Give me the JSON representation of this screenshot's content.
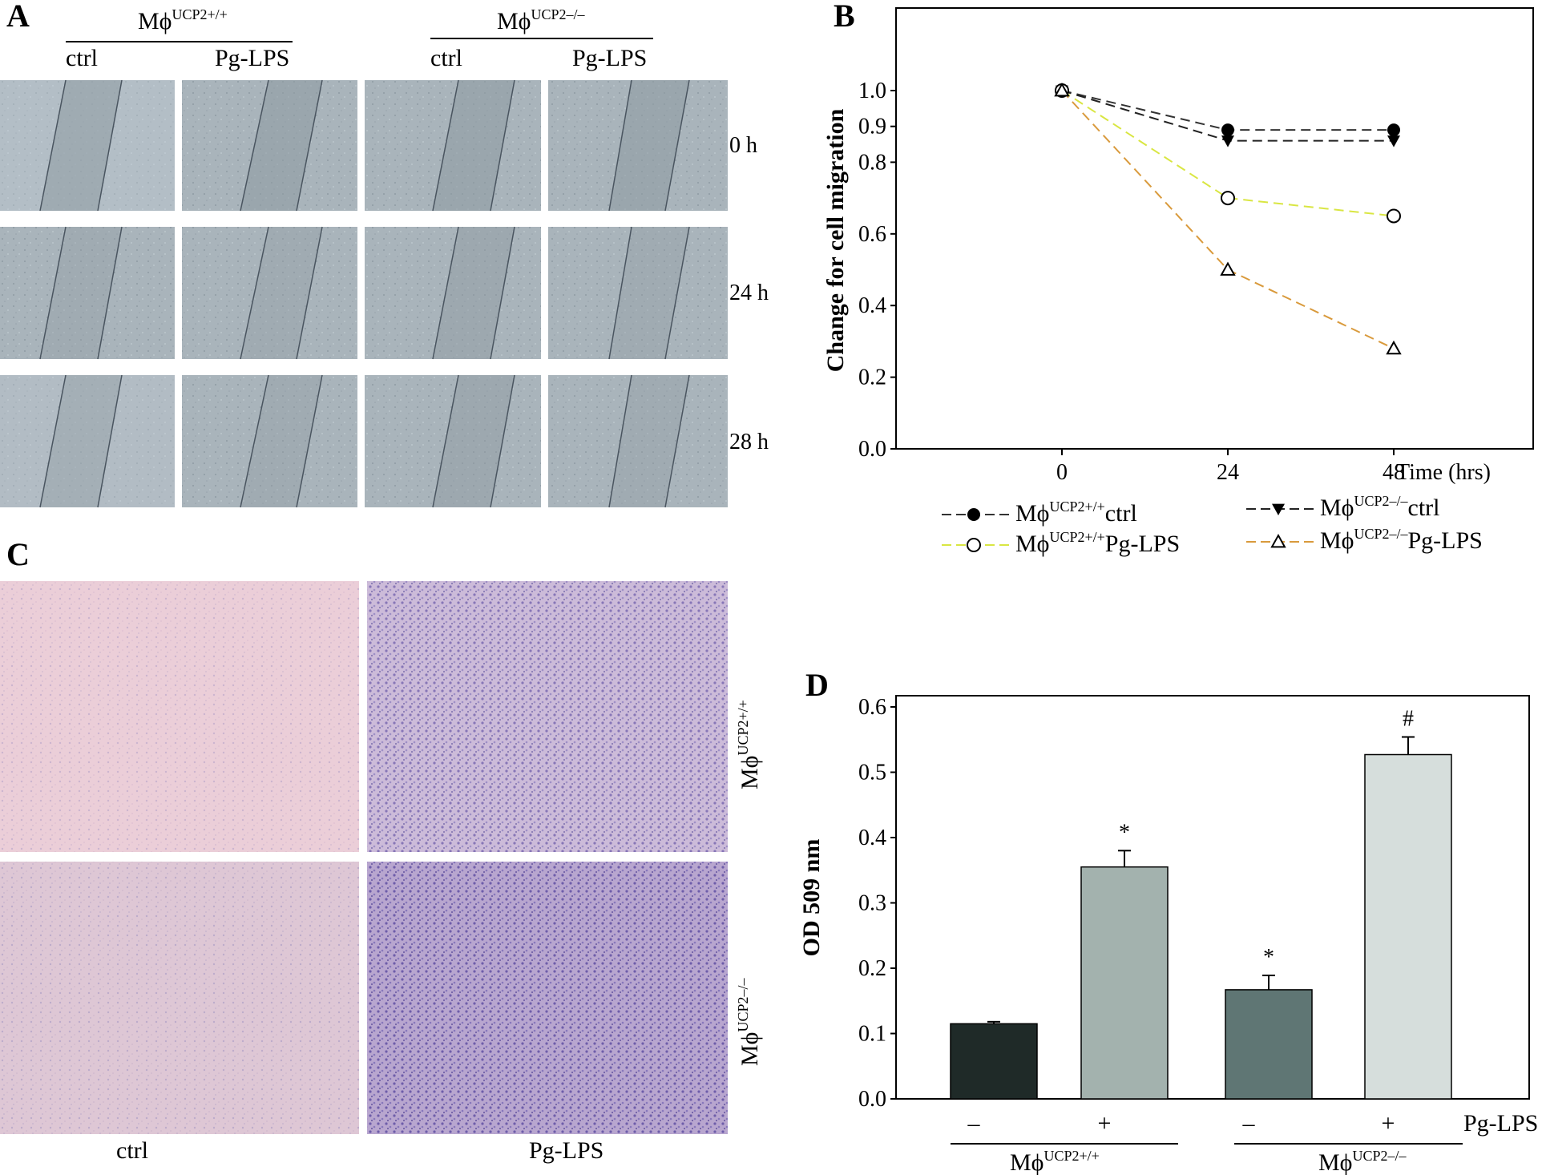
{
  "panel_labels": {
    "a": "A",
    "b": "B",
    "c": "C",
    "d": "D"
  },
  "panel_a": {
    "groups": [
      {
        "base": "Mϕ",
        "sup": "UCP2+/+"
      },
      {
        "base": "Mϕ",
        "sup": "UCP2–/–"
      }
    ],
    "conditions": [
      "ctrl",
      "Pg-LPS",
      "ctrl",
      "Pg-LPS"
    ],
    "timepoints": [
      "0 h",
      "24 h",
      "28 h"
    ]
  },
  "panel_c": {
    "row_labels": [
      {
        "base": "Mϕ",
        "sup": "UCP2+/+"
      },
      {
        "base": "Mϕ",
        "sup": "UCP2–/–"
      }
    ],
    "col_labels": [
      "ctrl",
      "Pg-LPS"
    ]
  },
  "chart_data": [
    {
      "type": "line",
      "panel": "B",
      "ylabel": "Change for cell migration",
      "xlabel": "Time (hrs)",
      "x": [
        0,
        24,
        48
      ],
      "x_tick_labels": [
        "0",
        "24",
        "48"
      ],
      "y_tick_labels": [
        "0.0",
        "0.2",
        "0.4",
        "0.6",
        "0.8",
        "0.9",
        "1.0"
      ],
      "series": [
        {
          "name": "MϕUCP2+/+ctrl",
          "base": "Mϕ",
          "sup": "UCP2+/+",
          "suffix": "ctrl",
          "values": [
            1.0,
            0.89,
            0.89
          ],
          "marker": "filled-circle",
          "color": "#333333"
        },
        {
          "name": "MϕUCP2–/–ctrl",
          "base": "Mϕ",
          "sup": "UCP2–/–",
          "suffix": "ctrl",
          "values": [
            1.0,
            0.86,
            0.86
          ],
          "marker": "filled-triangle-down",
          "color": "#222222"
        },
        {
          "name": "MϕUCP2+/+Pg-LPS",
          "base": "Mϕ",
          "sup": "UCP2+/+",
          "suffix": "Pg-LPS",
          "values": [
            1.0,
            0.7,
            0.65
          ],
          "marker": "open-circle",
          "color": "#d9e642"
        },
        {
          "name": "MϕUCP2–/–Pg-LPS",
          "base": "Mϕ",
          "sup": "UCP2–/–",
          "suffix": "Pg-LPS",
          "values": [
            1.0,
            0.5,
            0.28
          ],
          "marker": "open-triangle-up",
          "color": "#d99a3c"
        }
      ]
    },
    {
      "type": "bar",
      "panel": "D",
      "ylabel": "OD 509 nm",
      "ylim": [
        0,
        0.6
      ],
      "y_tick_labels": [
        "0.0",
        "0.1",
        "0.2",
        "0.3",
        "0.4",
        "0.5",
        "0.6"
      ],
      "categories": [
        "–",
        "+",
        "–",
        "+"
      ],
      "treatment_label": "Pg-LPS",
      "group_labels": [
        {
          "base": "Mϕ",
          "sup": "UCP2+/+"
        },
        {
          "base": "Mϕ",
          "sup": "UCP2–/–"
        }
      ],
      "values": [
        0.115,
        0.355,
        0.167,
        0.527
      ],
      "errors": [
        0.003,
        0.025,
        0.022,
        0.027
      ],
      "annotations": [
        "",
        "*",
        "*",
        "#"
      ],
      "colors": [
        "#1f2a28",
        "#a3b2ae",
        "#5f7674",
        "#d6dedc"
      ]
    }
  ]
}
